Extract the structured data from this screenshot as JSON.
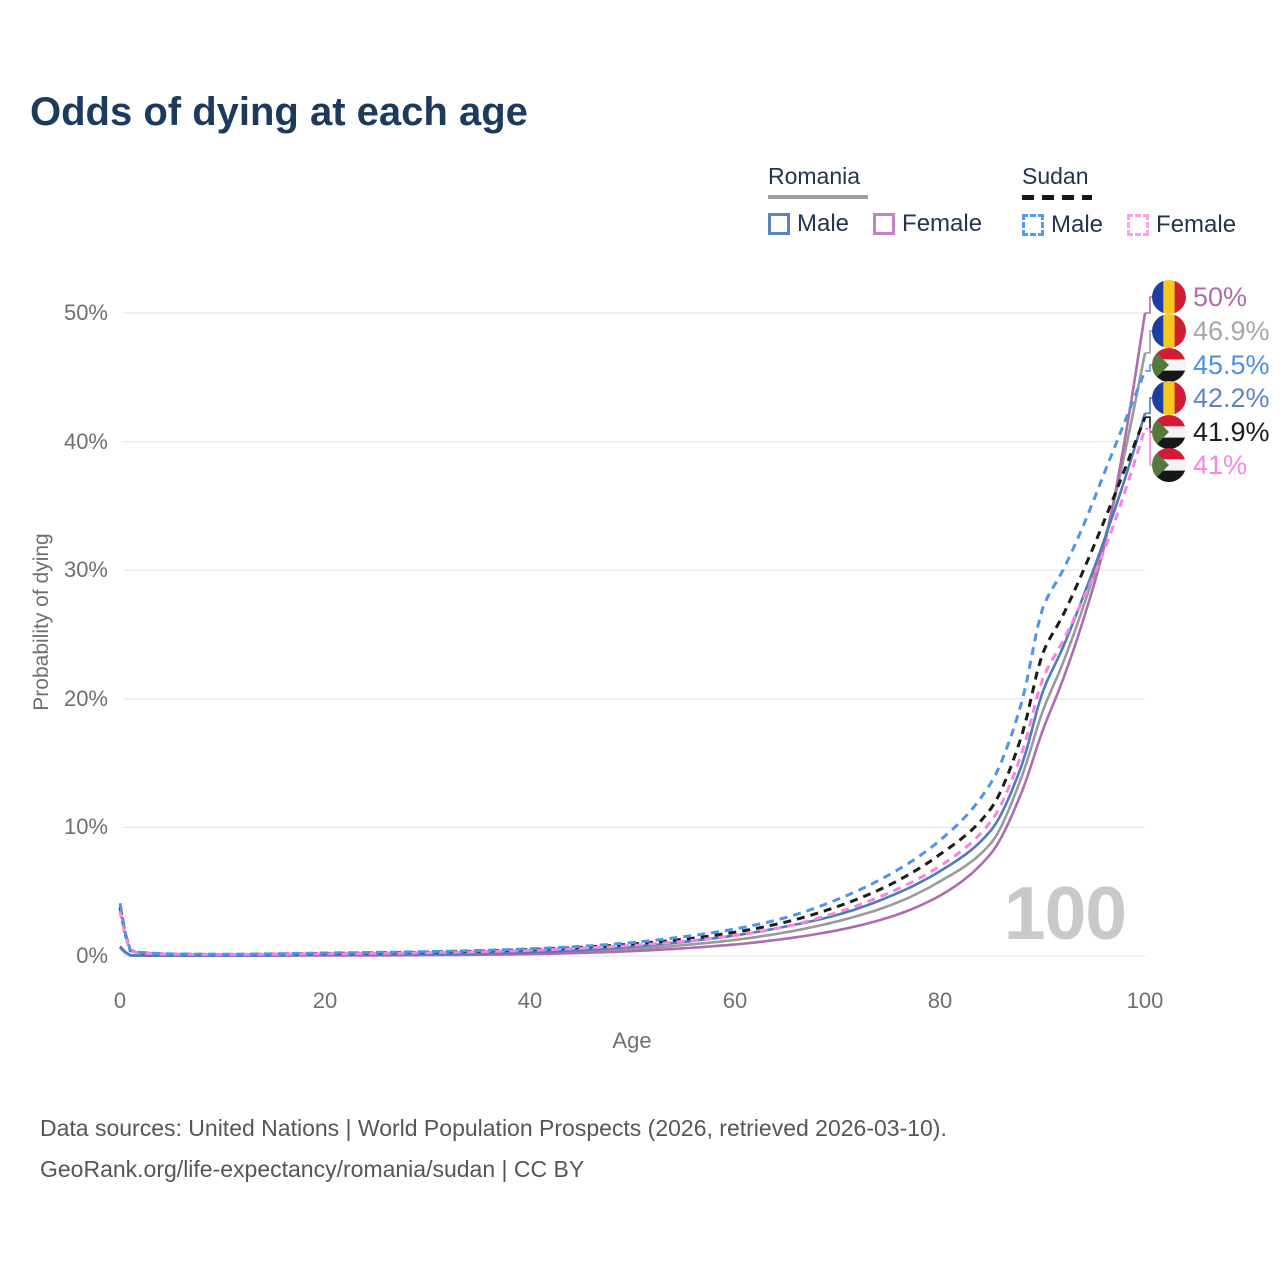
{
  "title": "Odds of dying at each age",
  "watermark": "100",
  "legend": {
    "groups": [
      {
        "label": "Romania",
        "style": "solid",
        "underline_color": "#9e9e9e",
        "items": [
          {
            "label": "Male",
            "color": "#5b84c4"
          },
          {
            "label": "Female",
            "color": "#c083c4"
          }
        ]
      },
      {
        "label": "Sudan",
        "style": "dashed",
        "underline_color": "#161616",
        "items": [
          {
            "label": "Male",
            "color": "#5799f0"
          },
          {
            "label": "Female",
            "color": "#fda0ee"
          }
        ]
      }
    ]
  },
  "flags": {
    "romania": {
      "blue": "#1e3f9f",
      "yellow": "#f6c71d",
      "red": "#d01d35"
    },
    "sudan": {
      "red": "#d21b35",
      "white": "#f4f4f4",
      "black": "#171717",
      "green": "#55793c"
    }
  },
  "footer": {
    "line1": "Data sources: United Nations | World Population Prospects (2026, retrieved 2026-03-10).",
    "line2": "GeoRank.org/life-expectancy/romania/sudan | CC BY"
  },
  "chart_data": {
    "type": "line",
    "title": "Odds of dying at each age",
    "xlabel": "Age",
    "ylabel": "Probability of dying",
    "xlim": [
      0,
      100
    ],
    "ylim": [
      0,
      50
    ],
    "x_ticks": [
      "0",
      "20",
      "40",
      "60",
      "80",
      "100"
    ],
    "y_ticks": [
      "0%",
      "10%",
      "20%",
      "30%",
      "40%",
      "50%"
    ],
    "y_tick_values": [
      0,
      10,
      20,
      30,
      40,
      50
    ],
    "x_tick_values": [
      0,
      20,
      40,
      60,
      80,
      100
    ],
    "grid": "horizontal",
    "gridline_color": "#e8e8e8",
    "legend_position": "top-right",
    "ages": [
      0,
      1,
      2,
      5,
      10,
      15,
      20,
      25,
      30,
      35,
      40,
      45,
      50,
      55,
      60,
      65,
      70,
      75,
      80,
      85,
      88,
      90,
      92,
      94,
      96,
      98,
      100
    ],
    "series": [
      {
        "name": "Romania Female",
        "country": "Romania",
        "sex": "Female",
        "style": "solid",
        "color": "#ae6cae",
        "end_label": {
          "text": "50%",
          "color": "#b06bad",
          "flag": "romania"
        },
        "values": [
          0.65,
          0.05,
          0.03,
          0.02,
          0.02,
          0.03,
          0.04,
          0.05,
          0.07,
          0.1,
          0.15,
          0.24,
          0.38,
          0.6,
          0.9,
          1.35,
          2.0,
          3.0,
          4.7,
          8.0,
          12.8,
          17.5,
          21.5,
          26.2,
          31.8,
          40.0,
          50.0
        ]
      },
      {
        "name": "Romania Total",
        "country": "Romania",
        "sex": "Both",
        "style": "solid",
        "color": "#9a9a9a",
        "end_label": {
          "text": "46.9%",
          "color": "#a6a6a6",
          "flag": "romania"
        },
        "values": [
          0.7,
          0.05,
          0.03,
          0.02,
          0.02,
          0.05,
          0.07,
          0.09,
          0.11,
          0.16,
          0.23,
          0.35,
          0.55,
          0.85,
          1.25,
          1.85,
          2.7,
          3.9,
          5.8,
          8.8,
          14.0,
          19.0,
          22.8,
          27.2,
          32.2,
          39.0,
          46.9
        ]
      },
      {
        "name": "Sudan Male",
        "country": "Sudan",
        "sex": "Male",
        "style": "dashed",
        "color": "#4e95ea",
        "end_label": {
          "text": "45.5%",
          "color": "#4a90e8",
          "flag": "sudan"
        },
        "values": [
          4.1,
          0.45,
          0.28,
          0.16,
          0.13,
          0.17,
          0.23,
          0.28,
          0.34,
          0.43,
          0.56,
          0.75,
          1.05,
          1.5,
          2.1,
          3.0,
          4.4,
          6.3,
          9.0,
          13.5,
          19.8,
          27.0,
          30.0,
          33.5,
          37.5,
          41.5,
          45.5
        ]
      },
      {
        "name": "Romania Male",
        "country": "Romania",
        "sex": "Male",
        "style": "solid",
        "color": "#4e7cba",
        "end_label": {
          "text": "42.2%",
          "color": "#5f85c0",
          "flag": "romania"
        },
        "values": [
          0.75,
          0.06,
          0.04,
          0.03,
          0.03,
          0.06,
          0.1,
          0.12,
          0.15,
          0.21,
          0.3,
          0.46,
          0.72,
          1.1,
          1.6,
          2.3,
          3.2,
          4.6,
          6.6,
          9.8,
          14.9,
          20.5,
          24.0,
          28.0,
          32.3,
          37.0,
          42.2
        ]
      },
      {
        "name": "Sudan Total",
        "country": "Sudan",
        "sex": "Both",
        "style": "dashed",
        "color": "#1c1c1c",
        "end_label": {
          "text": "41.9%",
          "color": "#1c1c1c",
          "flag": "sudan"
        },
        "values": [
          3.8,
          0.42,
          0.26,
          0.15,
          0.12,
          0.15,
          0.2,
          0.24,
          0.3,
          0.38,
          0.5,
          0.67,
          0.93,
          1.3,
          1.85,
          2.65,
          3.85,
          5.5,
          7.9,
          11.5,
          17.2,
          23.5,
          26.5,
          30.0,
          33.8,
          37.8,
          41.9
        ]
      },
      {
        "name": "Sudan Female",
        "country": "Sudan",
        "sex": "Female",
        "style": "dashed",
        "color": "#f983e4",
        "end_label": {
          "text": "41%",
          "color": "#f985e6",
          "flag": "sudan"
        },
        "values": [
          3.5,
          0.4,
          0.25,
          0.14,
          0.11,
          0.13,
          0.17,
          0.2,
          0.26,
          0.33,
          0.44,
          0.6,
          0.82,
          1.15,
          1.6,
          2.3,
          3.4,
          4.9,
          7.0,
          10.5,
          15.8,
          21.5,
          24.5,
          27.8,
          31.5,
          36.0,
          41.0
        ]
      }
    ],
    "draw_order": [
      "Romania Total",
      "Romania Female",
      "Romania Male",
      "Sudan Total",
      "Sudan Female",
      "Sudan Male"
    ]
  }
}
